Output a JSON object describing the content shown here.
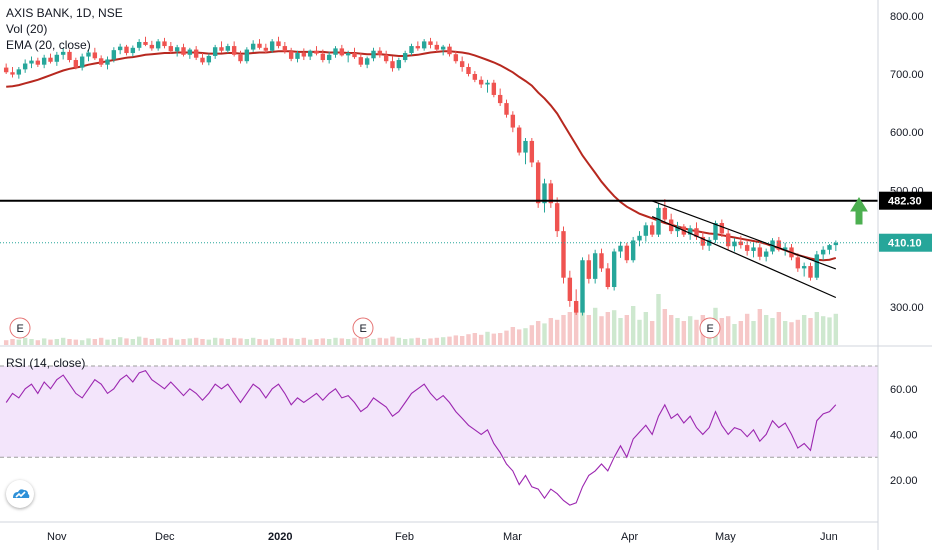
{
  "header": {
    "symbol_line": "AXIS BANK, 1D, NSE",
    "volume_line": "Vol (20)",
    "ema_line": "EMA (20, close)"
  },
  "rsi_panel": {
    "label": "RSI (14, close)"
  },
  "colors": {
    "up": "#26a69a",
    "down": "#ef5350",
    "ema": "#b7281f",
    "rsi": "#9c27b0",
    "rsi_band": "#f3e5fb",
    "resistance": "#000000",
    "arrow": "#4caf50",
    "current_price_tag": "#26a69a",
    "price_line_tag": "#000000"
  },
  "icons": {
    "up_arrow": "green-up-arrow-icon",
    "earnings": "earnings-e-icon",
    "logo": "tradingview-cloud-icon"
  },
  "chart_data": {
    "type": "candlestick",
    "title": "AXIS BANK, 1D, NSE",
    "price_axis": {
      "ticks": [
        "800.00",
        "700.00",
        "600.00",
        "500.00",
        "300.00"
      ],
      "range": [
        250,
        815
      ]
    },
    "rsi_axis": {
      "ticks": [
        "60.00",
        "40.00",
        "20.00"
      ],
      "range": [
        2,
        80
      ],
      "band": [
        30,
        70
      ]
    },
    "time_axis": {
      "labels": [
        "Nov",
        "Dec",
        "2020",
        "Feb",
        "Mar",
        "Apr",
        "May",
        "Jun"
      ]
    },
    "horizontal_line": {
      "value": 482.3,
      "label": "482.30"
    },
    "last_price": {
      "value": 410.1,
      "label": "410.10"
    },
    "earnings_markers": [
      "E",
      "E",
      "E"
    ],
    "channel": {
      "upper": [
        [
          168,
          482
        ],
        [
          197,
          365
        ]
      ],
      "lower": [
        [
          168,
          455
        ],
        [
          197,
          316
        ]
      ]
    },
    "candles": [
      [
        711,
        718,
        700,
        703
      ],
      [
        703,
        712,
        694,
        699
      ],
      [
        699,
        712,
        692,
        708
      ],
      [
        708,
        725,
        702,
        718
      ],
      [
        718,
        730,
        710,
        723
      ],
      [
        723,
        728,
        712,
        716
      ],
      [
        716,
        733,
        710,
        728
      ],
      [
        728,
        735,
        718,
        721
      ],
      [
        721,
        738,
        714,
        733
      ],
      [
        733,
        744,
        725,
        738
      ],
      [
        738,
        742,
        720,
        724
      ],
      [
        724,
        728,
        708,
        711
      ],
      [
        711,
        735,
        706,
        730
      ],
      [
        730,
        742,
        722,
        737
      ],
      [
        737,
        745,
        724,
        727
      ],
      [
        727,
        732,
        712,
        716
      ],
      [
        716,
        730,
        708,
        725
      ],
      [
        725,
        746,
        720,
        741
      ],
      [
        741,
        752,
        734,
        747
      ],
      [
        747,
        750,
        732,
        736
      ],
      [
        736,
        749,
        730,
        745
      ],
      [
        745,
        760,
        740,
        755
      ],
      [
        755,
        764,
        748,
        750
      ],
      [
        750,
        757,
        740,
        744
      ],
      [
        744,
        760,
        740,
        756
      ],
      [
        756,
        762,
        744,
        748
      ],
      [
        748,
        755,
        735,
        739
      ],
      [
        739,
        750,
        730,
        746
      ],
      [
        746,
        752,
        730,
        733
      ],
      [
        733,
        745,
        726,
        742
      ],
      [
        742,
        748,
        724,
        728
      ],
      [
        728,
        736,
        716,
        720
      ],
      [
        720,
        735,
        715,
        731
      ],
      [
        731,
        750,
        726,
        746
      ],
      [
        746,
        756,
        736,
        740
      ],
      [
        740,
        752,
        736,
        748
      ],
      [
        748,
        756,
        730,
        733
      ],
      [
        733,
        740,
        718,
        722
      ],
      [
        722,
        746,
        718,
        742
      ],
      [
        742,
        758,
        738,
        752
      ],
      [
        752,
        760,
        742,
        745
      ],
      [
        745,
        752,
        736,
        740
      ],
      [
        740,
        760,
        736,
        756
      ],
      [
        756,
        764,
        744,
        748
      ],
      [
        748,
        755,
        735,
        739
      ],
      [
        739,
        745,
        722,
        726
      ],
      [
        726,
        740,
        720,
        736
      ],
      [
        736,
        744,
        724,
        730
      ],
      [
        730,
        742,
        724,
        740
      ],
      [
        740,
        748,
        732,
        735
      ],
      [
        735,
        742,
        720,
        724
      ],
      [
        724,
        738,
        718,
        733
      ],
      [
        733,
        748,
        728,
        744
      ],
      [
        744,
        750,
        730,
        732
      ],
      [
        732,
        740,
        720,
        736
      ],
      [
        736,
        745,
        726,
        729
      ],
      [
        729,
        736,
        712,
        716
      ],
      [
        716,
        730,
        710,
        727
      ],
      [
        727,
        745,
        722,
        740
      ],
      [
        740,
        746,
        728,
        733
      ],
      [
        733,
        740,
        718,
        722
      ],
      [
        722,
        731,
        704,
        710
      ],
      [
        710,
        728,
        706,
        724
      ],
      [
        724,
        740,
        720,
        736
      ],
      [
        736,
        752,
        732,
        748
      ],
      [
        748,
        756,
        740,
        744
      ],
      [
        744,
        760,
        740,
        756
      ],
      [
        756,
        762,
        744,
        750
      ],
      [
        750,
        756,
        738,
        742
      ],
      [
        742,
        750,
        732,
        747
      ],
      [
        747,
        752,
        730,
        734
      ],
      [
        734,
        740,
        718,
        722
      ],
      [
        722,
        730,
        704,
        712
      ],
      [
        712,
        718,
        696,
        700
      ],
      [
        700,
        705,
        686,
        690
      ],
      [
        690,
        696,
        676,
        682
      ],
      [
        682,
        690,
        668,
        685
      ],
      [
        685,
        690,
        660,
        664
      ],
      [
        664,
        675,
        645,
        650
      ],
      [
        650,
        656,
        625,
        630
      ],
      [
        630,
        636,
        600,
        608
      ],
      [
        608,
        612,
        560,
        565
      ],
      [
        565,
        590,
        545,
        585
      ],
      [
        585,
        590,
        540,
        548
      ],
      [
        548,
        552,
        470,
        478
      ],
      [
        478,
        520,
        462,
        512
      ],
      [
        512,
        518,
        470,
        478
      ],
      [
        478,
        488,
        420,
        430
      ],
      [
        430,
        438,
        340,
        350
      ],
      [
        350,
        362,
        300,
        310
      ],
      [
        310,
        330,
        286,
        290
      ],
      [
        290,
        385,
        285,
        380
      ],
      [
        380,
        390,
        340,
        348
      ],
      [
        348,
        398,
        340,
        392
      ],
      [
        392,
        400,
        360,
        366
      ],
      [
        366,
        375,
        330,
        334
      ],
      [
        334,
        400,
        328,
        395
      ],
      [
        395,
        412,
        384,
        405
      ],
      [
        405,
        410,
        375,
        380
      ],
      [
        380,
        420,
        376,
        414
      ],
      [
        414,
        430,
        404,
        422
      ],
      [
        422,
        445,
        412,
        440
      ],
      [
        440,
        446,
        420,
        424
      ],
      [
        424,
        478,
        420,
        470
      ],
      [
        470,
        485,
        445,
        450
      ],
      [
        450,
        460,
        425,
        430
      ],
      [
        430,
        446,
        420,
        438
      ],
      [
        438,
        442,
        420,
        424
      ],
      [
        424,
        440,
        415,
        435
      ],
      [
        435,
        445,
        415,
        420
      ],
      [
        420,
        430,
        398,
        405
      ],
      [
        405,
        420,
        396,
        415
      ],
      [
        415,
        448,
        410,
        444
      ],
      [
        444,
        450,
        420,
        426
      ],
      [
        426,
        432,
        398,
        404
      ],
      [
        404,
        418,
        395,
        412
      ],
      [
        412,
        422,
        400,
        406
      ],
      [
        406,
        415,
        388,
        396
      ],
      [
        396,
        410,
        385,
        402
      ],
      [
        402,
        408,
        380,
        386
      ],
      [
        386,
        400,
        378,
        395
      ],
      [
        395,
        418,
        390,
        414
      ],
      [
        414,
        420,
        395,
        398
      ],
      [
        398,
        410,
        388,
        402
      ],
      [
        402,
        408,
        380,
        385
      ],
      [
        385,
        392,
        360,
        366
      ],
      [
        366,
        376,
        352,
        370
      ],
      [
        370,
        376,
        345,
        350
      ],
      [
        350,
        396,
        346,
        390
      ],
      [
        390,
        404,
        380,
        398
      ],
      [
        398,
        408,
        390,
        406
      ],
      [
        406,
        414,
        396,
        410
      ]
    ],
    "volume": [
      0.08,
      0.1,
      0.09,
      0.12,
      0.1,
      0.08,
      0.11,
      0.09,
      0.1,
      0.12,
      0.1,
      0.09,
      0.08,
      0.11,
      0.1,
      0.12,
      0.09,
      0.1,
      0.13,
      0.11,
      0.1,
      0.14,
      0.12,
      0.1,
      0.11,
      0.1,
      0.12,
      0.09,
      0.1,
      0.11,
      0.12,
      0.1,
      0.09,
      0.12,
      0.11,
      0.1,
      0.12,
      0.11,
      0.1,
      0.12,
      0.1,
      0.09,
      0.11,
      0.1,
      0.12,
      0.11,
      0.1,
      0.12,
      0.09,
      0.1,
      0.11,
      0.1,
      0.12,
      0.11,
      0.1,
      0.12,
      0.13,
      0.11,
      0.1,
      0.12,
      0.11,
      0.14,
      0.12,
      0.1,
      0.11,
      0.12,
      0.1,
      0.11,
      0.12,
      0.13,
      0.14,
      0.16,
      0.15,
      0.18,
      0.2,
      0.17,
      0.22,
      0.19,
      0.2,
      0.24,
      0.3,
      0.26,
      0.28,
      0.33,
      0.4,
      0.36,
      0.45,
      0.42,
      0.5,
      0.55,
      0.6,
      0.75,
      0.5,
      0.62,
      0.48,
      0.55,
      0.58,
      0.45,
      0.5,
      0.65,
      0.42,
      0.55,
      0.4,
      0.85,
      0.6,
      0.5,
      0.45,
      0.4,
      0.48,
      0.42,
      0.5,
      0.38,
      0.62,
      0.45,
      0.48,
      0.35,
      0.4,
      0.52,
      0.4,
      0.6,
      0.5,
      0.45,
      0.55,
      0.4,
      0.38,
      0.42,
      0.5,
      0.45,
      0.55,
      0.48,
      0.46,
      0.52
    ],
    "ema": [
      678,
      679,
      681,
      684,
      687,
      690,
      694,
      698,
      702,
      706,
      709,
      711,
      713,
      716,
      718,
      720,
      722,
      724,
      726,
      728,
      729,
      731,
      733,
      734,
      735,
      736,
      736,
      737,
      737,
      737,
      737,
      736,
      735,
      735,
      735,
      736,
      736,
      735,
      735,
      736,
      737,
      737,
      738,
      739,
      739,
      739,
      738,
      738,
      738,
      738,
      738,
      737,
      737,
      737,
      736,
      736,
      735,
      734,
      734,
      734,
      733,
      732,
      731,
      731,
      732,
      733,
      735,
      737,
      738,
      739,
      739,
      738,
      737,
      735,
      732,
      728,
      724,
      720,
      715,
      709,
      703,
      695,
      688,
      680,
      668,
      658,
      646,
      632,
      614,
      596,
      578,
      560,
      545,
      530,
      515,
      502,
      490,
      480,
      472,
      466,
      460,
      456,
      452,
      448,
      444,
      441,
      438,
      435,
      432,
      430,
      428,
      426,
      425,
      423,
      421,
      419,
      417,
      415,
      413,
      411,
      408,
      404,
      401,
      397,
      393,
      389,
      386,
      383,
      381,
      380,
      381,
      384
    ],
    "rsi": [
      54,
      58,
      56,
      60,
      62,
      58,
      63,
      60,
      64,
      66,
      62,
      58,
      56,
      60,
      64,
      62,
      58,
      60,
      64,
      66,
      63,
      67,
      68,
      64,
      62,
      60,
      63,
      60,
      57,
      60,
      58,
      55,
      58,
      62,
      60,
      62,
      58,
      54,
      58,
      62,
      60,
      56,
      60,
      62,
      58,
      53,
      56,
      54,
      56,
      58,
      55,
      58,
      60,
      56,
      57,
      54,
      50,
      52,
      56,
      54,
      52,
      48,
      50,
      54,
      58,
      60,
      62,
      58,
      55,
      57,
      54,
      50,
      47,
      44,
      42,
      40,
      42,
      36,
      32,
      27,
      24,
      18,
      22,
      17,
      16,
      12,
      16,
      14,
      11,
      9,
      10,
      17,
      22,
      24,
      27,
      24,
      30,
      35,
      30,
      38,
      41,
      44,
      40,
      48,
      53,
      47,
      49,
      45,
      48,
      43,
      40,
      43,
      50,
      44,
      40,
      43,
      42,
      39,
      42,
      37,
      40,
      46,
      43,
      45,
      40,
      34,
      36,
      33,
      46,
      49,
      50,
      53
    ]
  }
}
